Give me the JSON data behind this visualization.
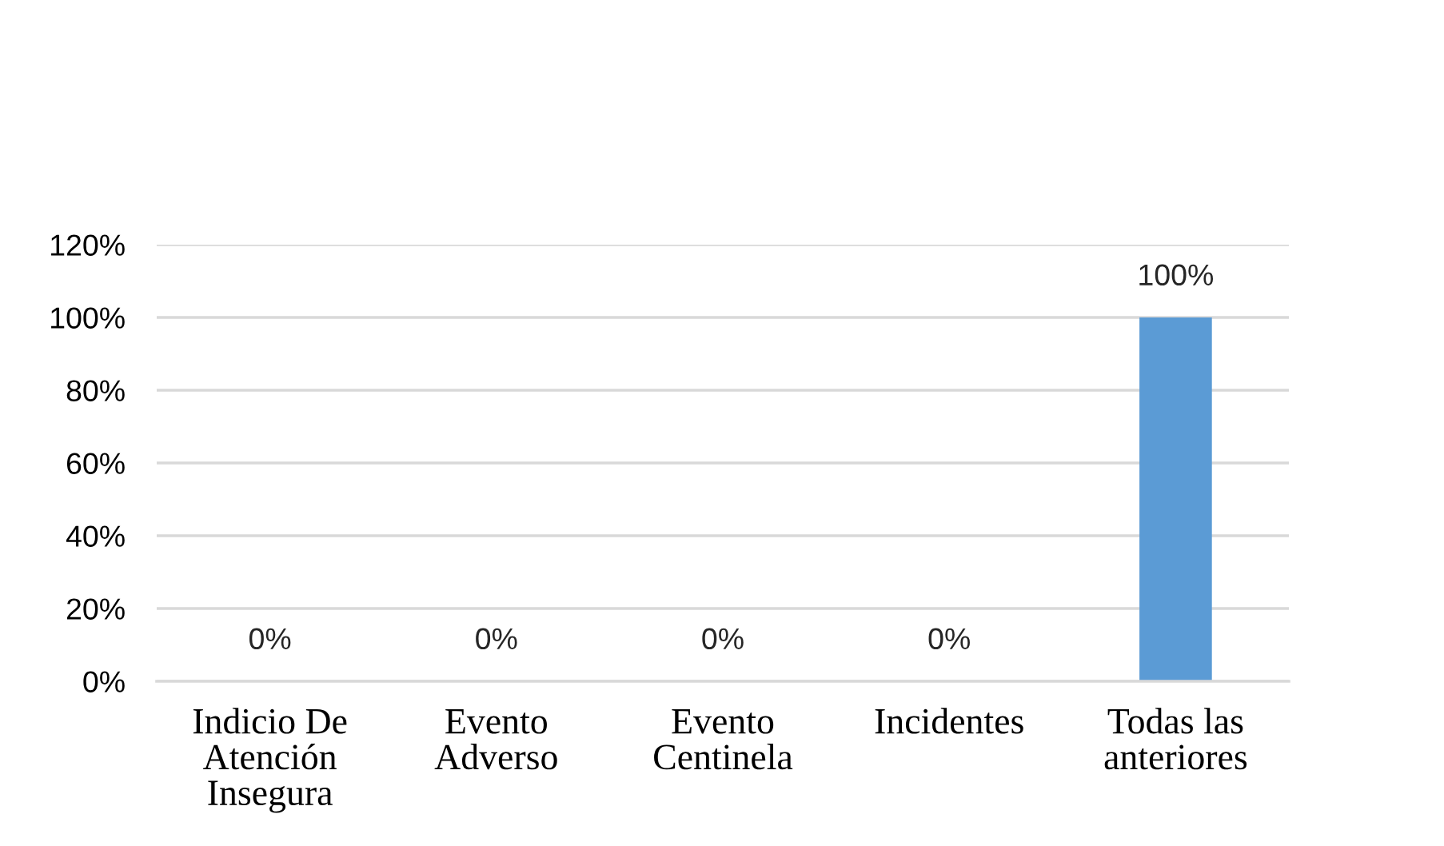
{
  "chart_data": {
    "type": "bar",
    "categories": [
      "Indicio De\nAtención\nInsegura",
      "Evento\nAdverso",
      "Evento\nCentinela",
      "Incidentes",
      "Todas las\nanteriores"
    ],
    "values": [
      0,
      0,
      0,
      0,
      100
    ],
    "value_labels": [
      "0%",
      "0%",
      "0%",
      "0%",
      "100%"
    ],
    "color": "#5b9bd5",
    "ylim": [
      0,
      120
    ],
    "yticks": [
      {
        "value": 0,
        "label": "0%"
      },
      {
        "value": 20,
        "label": "20%"
      },
      {
        "value": 40,
        "label": "40%"
      },
      {
        "value": 60,
        "label": "60%"
      },
      {
        "value": 80,
        "label": "80%"
      },
      {
        "value": 100,
        "label": "100%"
      },
      {
        "value": 120,
        "label": "120%"
      }
    ],
    "grid": "y"
  }
}
